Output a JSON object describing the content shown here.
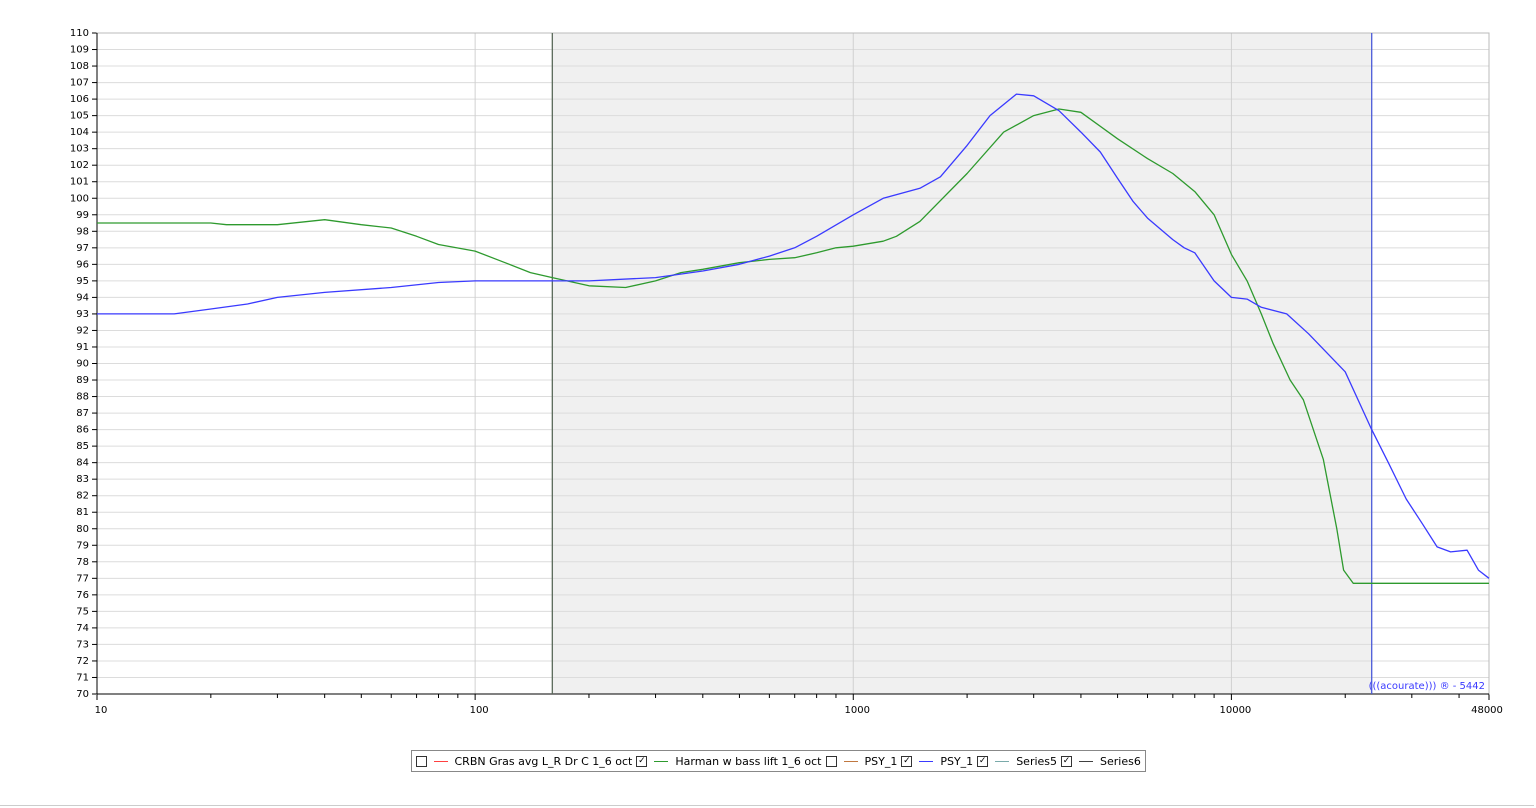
{
  "chart_data": {
    "type": "line",
    "xscale": "log",
    "grid": true,
    "xlim": [
      10,
      48000
    ],
    "ylim": [
      70,
      110
    ],
    "xticks": [
      10,
      100,
      1000,
      10000,
      48000
    ],
    "yticks": [
      70,
      71,
      72,
      73,
      74,
      75,
      76,
      77,
      78,
      79,
      80,
      81,
      82,
      83,
      84,
      85,
      86,
      87,
      88,
      89,
      90,
      91,
      92,
      93,
      94,
      95,
      96,
      97,
      98,
      99,
      100,
      101,
      102,
      103,
      104,
      105,
      106,
      107,
      108,
      109,
      110
    ],
    "shaded_range": [
      160,
      23500
    ],
    "marker_colors": [
      "#5a6a5a",
      "#4a5ad8"
    ],
    "watermark": "(((acourate))) ® - 5442",
    "series": [
      {
        "name": "CRBN Gras avg L_R Dr C 1_6 oct",
        "color": "#ff4040",
        "checked": false
      },
      {
        "name": "Harman w bass lift 1_6 oct",
        "color": "#2e9a2e",
        "checked": true,
        "x": [
          10,
          20,
          22,
          30,
          40,
          50,
          60,
          70,
          80,
          100,
          120,
          140,
          160,
          200,
          250,
          300,
          350,
          400,
          500,
          600,
          700,
          800,
          900,
          1000,
          1200,
          1300,
          1500,
          2000,
          2500,
          3000,
          3500,
          4000,
          5000,
          6000,
          7000,
          8000,
          9000,
          10000,
          11000,
          12000,
          12900,
          14300,
          15500,
          17500,
          19000,
          19800,
          21000,
          48000
        ],
        "values": [
          98.5,
          98.5,
          98.4,
          98.4,
          98.7,
          98.4,
          98.2,
          97.7,
          97.2,
          96.8,
          96.1,
          95.5,
          95.2,
          94.7,
          94.6,
          95.0,
          95.5,
          95.7,
          96.1,
          96.3,
          96.4,
          96.7,
          97.0,
          97.1,
          97.4,
          97.7,
          98.6,
          101.5,
          104.0,
          105.0,
          105.4,
          105.2,
          103.6,
          102.4,
          101.5,
          100.4,
          99.0,
          96.6,
          95.0,
          93.0,
          91.2,
          89.0,
          87.8,
          84.2,
          80.0,
          77.5,
          76.7,
          76.7
        ]
      },
      {
        "name": "PSY_1",
        "color": "#c07840",
        "checked": false
      },
      {
        "name": "PSY_1",
        "color": "#3a3aff",
        "checked": true,
        "x": [
          10,
          16,
          20,
          25,
          30,
          40,
          60,
          80,
          100,
          200,
          300,
          400,
          500,
          600,
          700,
          800,
          1000,
          1200,
          1500,
          1700,
          2000,
          2300,
          2700,
          3000,
          3500,
          4000,
          4500,
          5000,
          5500,
          6000,
          7000,
          7500,
          8000,
          9000,
          10000,
          11000,
          12000,
          14000,
          16000,
          20000,
          23500,
          26000,
          29000,
          32000,
          35000,
          38000,
          42000,
          45000,
          48000
        ],
        "values": [
          93.0,
          93.0,
          93.3,
          93.6,
          94.0,
          94.3,
          94.6,
          94.9,
          95.0,
          95.0,
          95.2,
          95.6,
          96.0,
          96.5,
          97.0,
          97.7,
          99.0,
          100.0,
          100.6,
          101.3,
          103.2,
          105.0,
          106.3,
          106.2,
          105.3,
          104.0,
          102.8,
          101.2,
          99.8,
          98.8,
          97.5,
          97.0,
          96.7,
          95.0,
          94.0,
          93.9,
          93.4,
          93.0,
          91.8,
          89.5,
          86.0,
          84.0,
          81.8,
          80.3,
          78.9,
          78.6,
          78.7,
          77.5,
          77.0
        ]
      },
      {
        "name": "Series5",
        "color": "#7aaaaa",
        "checked": true
      },
      {
        "name": "Series6",
        "color": "#404040",
        "checked": true
      }
    ]
  }
}
